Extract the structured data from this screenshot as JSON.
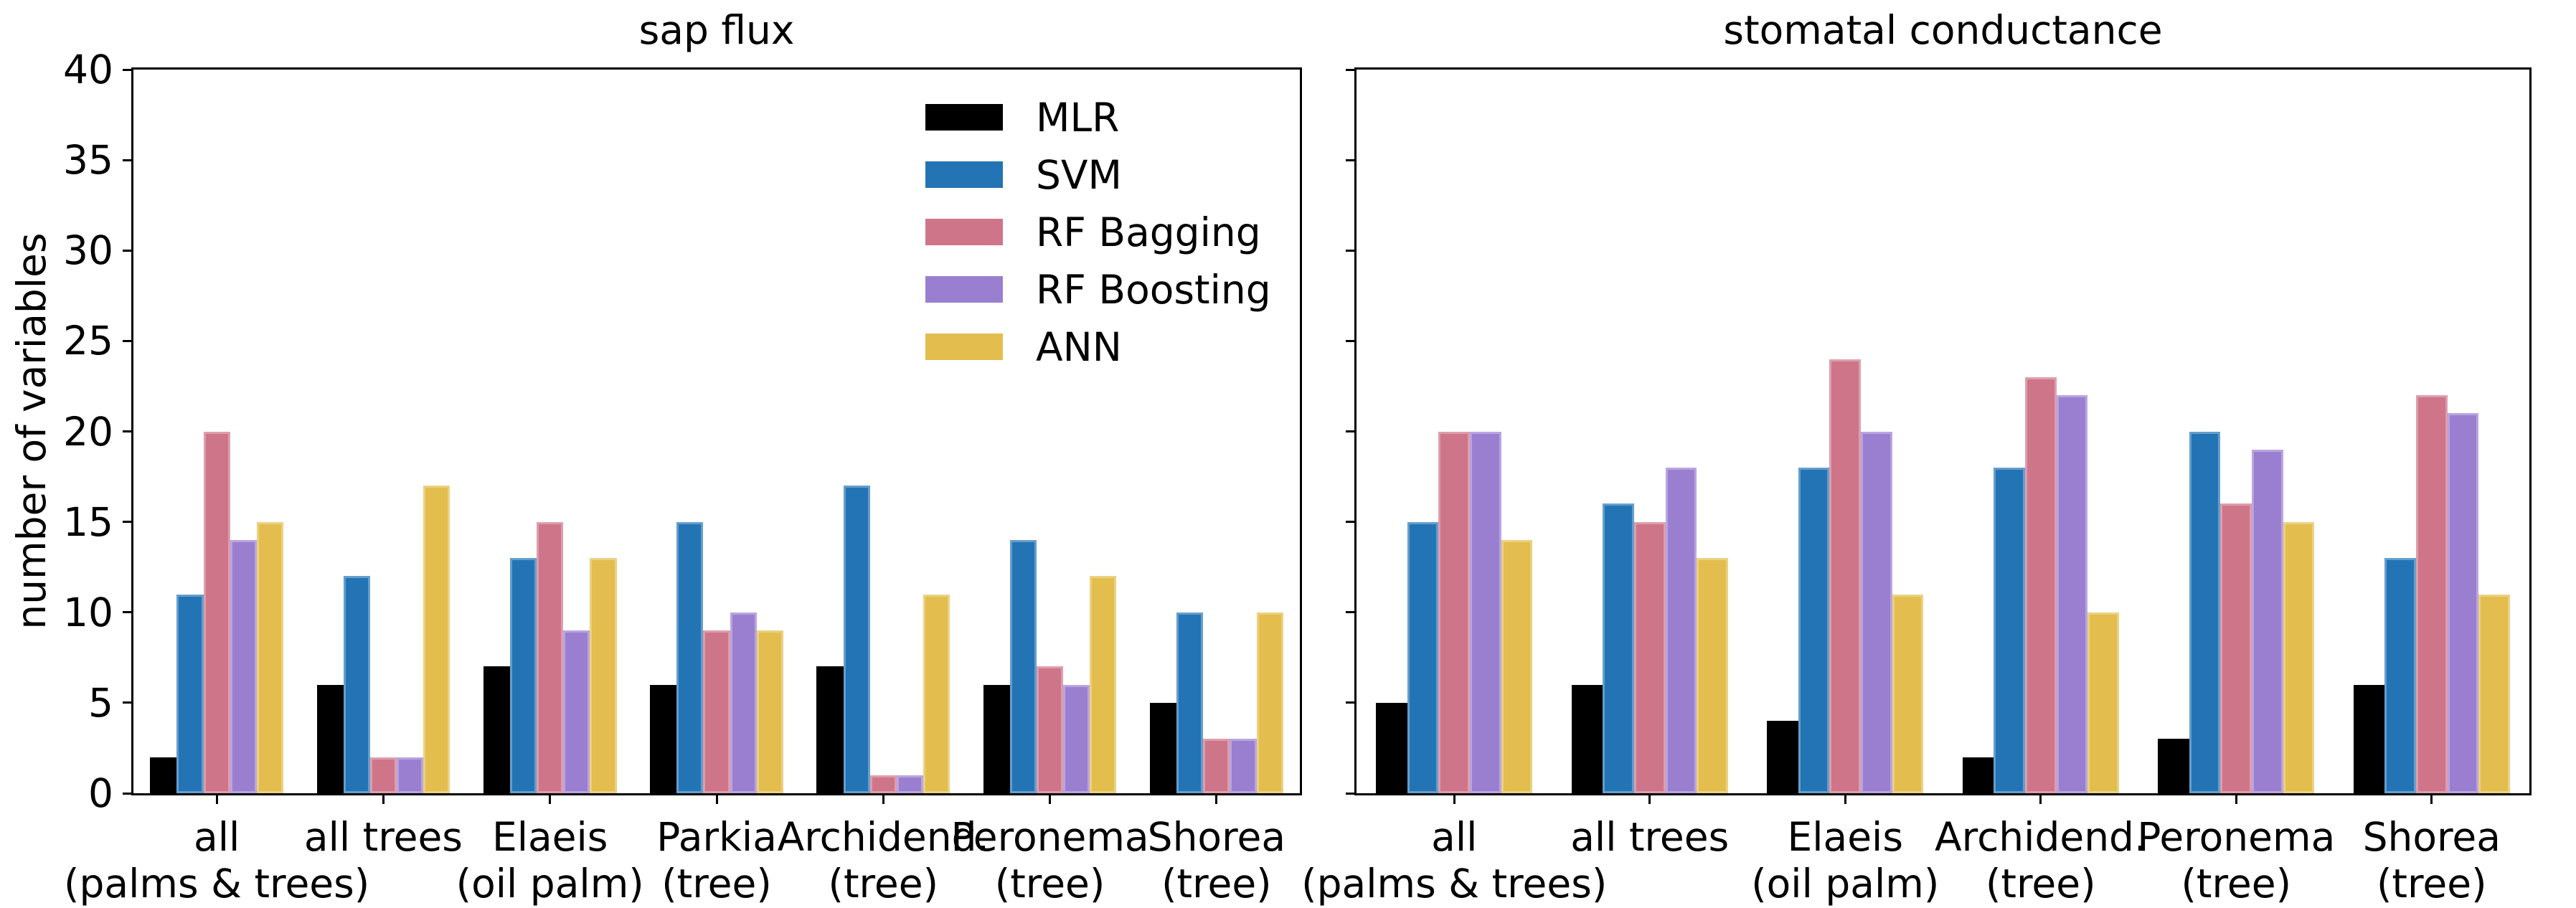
{
  "figure": {
    "ylabel": "number of variables",
    "background": "#ffffff",
    "text_color": "#000000"
  },
  "legend": {
    "items": [
      "MLR",
      "SVM",
      "RF Bagging",
      "RF Boosting",
      "ANN"
    ]
  },
  "chart_data": [
    {
      "type": "bar",
      "title": "sap flux",
      "ylabel": "number of variables",
      "ylim": [
        0,
        40
      ],
      "yticks": [
        0,
        5,
        10,
        15,
        20,
        25,
        30,
        35,
        40
      ],
      "ytick_labels_visible": true,
      "grid": false,
      "legend_position": "upper left inside",
      "categories": [
        [
          "all",
          "(palms & trees)"
        ],
        [
          "all trees",
          ""
        ],
        [
          "Elaeis",
          "(oil palm)"
        ],
        [
          "Parkia",
          "(tree)"
        ],
        [
          "Archidend.",
          "(tree)"
        ],
        [
          "Peronema",
          "(tree)"
        ],
        [
          "Shorea",
          "(tree)"
        ]
      ],
      "series": [
        {
          "name": "MLR",
          "color": "#000000",
          "values": [
            2,
            6,
            7,
            6,
            7,
            6,
            5
          ]
        },
        {
          "name": "SVM",
          "color": "#2374b5",
          "values": [
            11,
            12,
            13,
            15,
            17,
            14,
            10
          ]
        },
        {
          "name": "RF Bagging",
          "color": "#cf7589",
          "values": [
            20,
            2,
            15,
            9,
            1,
            7,
            3
          ]
        },
        {
          "name": "RF Boosting",
          "color": "#9a7fd1",
          "values": [
            14,
            2,
            9,
            10,
            1,
            6,
            3
          ]
        },
        {
          "name": "ANN",
          "color": "#e3bd4d",
          "values": [
            15,
            17,
            13,
            9,
            11,
            12,
            10
          ]
        }
      ]
    },
    {
      "type": "bar",
      "title": "stomatal conductance",
      "ylim": [
        0,
        40
      ],
      "yticks": [
        0,
        5,
        10,
        15,
        20,
        25,
        30,
        35,
        40
      ],
      "ytick_labels_visible": false,
      "grid": false,
      "categories": [
        [
          "all",
          "(palms & trees)"
        ],
        [
          "all trees",
          ""
        ],
        [
          "Elaeis",
          "(oil palm)"
        ],
        [
          "Archidend.",
          "(tree)"
        ],
        [
          "Peronema",
          "(tree)"
        ],
        [
          "Shorea",
          "(tree)"
        ]
      ],
      "series": [
        {
          "name": "MLR",
          "color": "#000000",
          "values": [
            5,
            6,
            4,
            2,
            3,
            6
          ]
        },
        {
          "name": "SVM",
          "color": "#2374b5",
          "values": [
            15,
            16,
            18,
            18,
            20,
            13
          ]
        },
        {
          "name": "RF Bagging",
          "color": "#cf7589",
          "values": [
            20,
            15,
            24,
            23,
            16,
            22
          ]
        },
        {
          "name": "RF Boosting",
          "color": "#9a7fd1",
          "values": [
            20,
            18,
            20,
            22,
            19,
            21
          ]
        },
        {
          "name": "ANN",
          "color": "#e3bd4d",
          "values": [
            14,
            13,
            11,
            10,
            15,
            11
          ]
        }
      ]
    }
  ]
}
